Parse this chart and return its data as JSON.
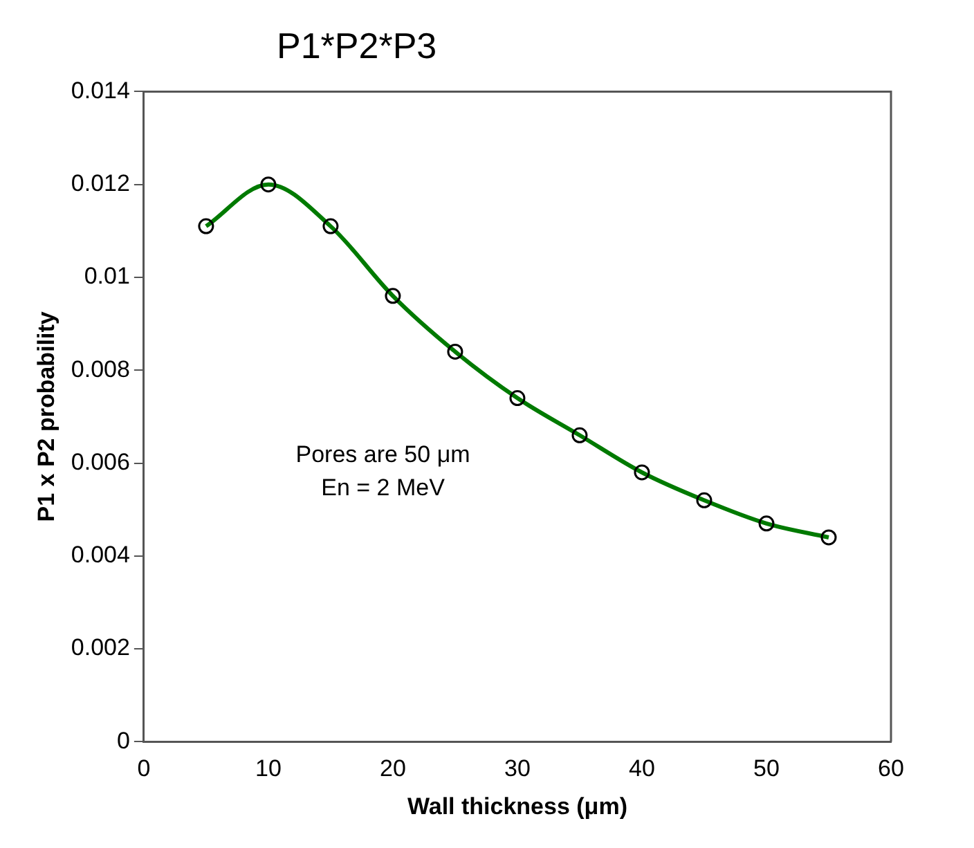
{
  "chart_data": {
    "type": "line",
    "title": "P1*P2*P3",
    "xlabel": "Wall thickness (μm)",
    "ylabel": "P1 x P2 probability",
    "x": [
      5,
      10,
      15,
      20,
      25,
      30,
      35,
      40,
      45,
      50,
      55
    ],
    "series": [
      {
        "color": "#007a00",
        "values": [
          0.0111,
          0.012,
          0.0111,
          0.0096,
          0.0084,
          0.0074,
          0.0066,
          0.0058,
          0.0052,
          0.0047,
          0.0044
        ]
      }
    ],
    "xlim": [
      0,
      60
    ],
    "xticks": [
      0,
      10,
      20,
      30,
      40,
      50,
      60
    ],
    "ylim": [
      0,
      0.014
    ],
    "yticks": [
      0,
      0.002,
      0.004,
      0.006,
      0.008,
      {
        "value": 0.01,
        "label": "0.01"
      },
      0.012,
      0.014
    ],
    "annotations": [
      "Pores are 50 μm\nEn = 2 MeV"
    ],
    "marker": "circle",
    "line_style": "solid",
    "grid": false,
    "legend": false
  }
}
